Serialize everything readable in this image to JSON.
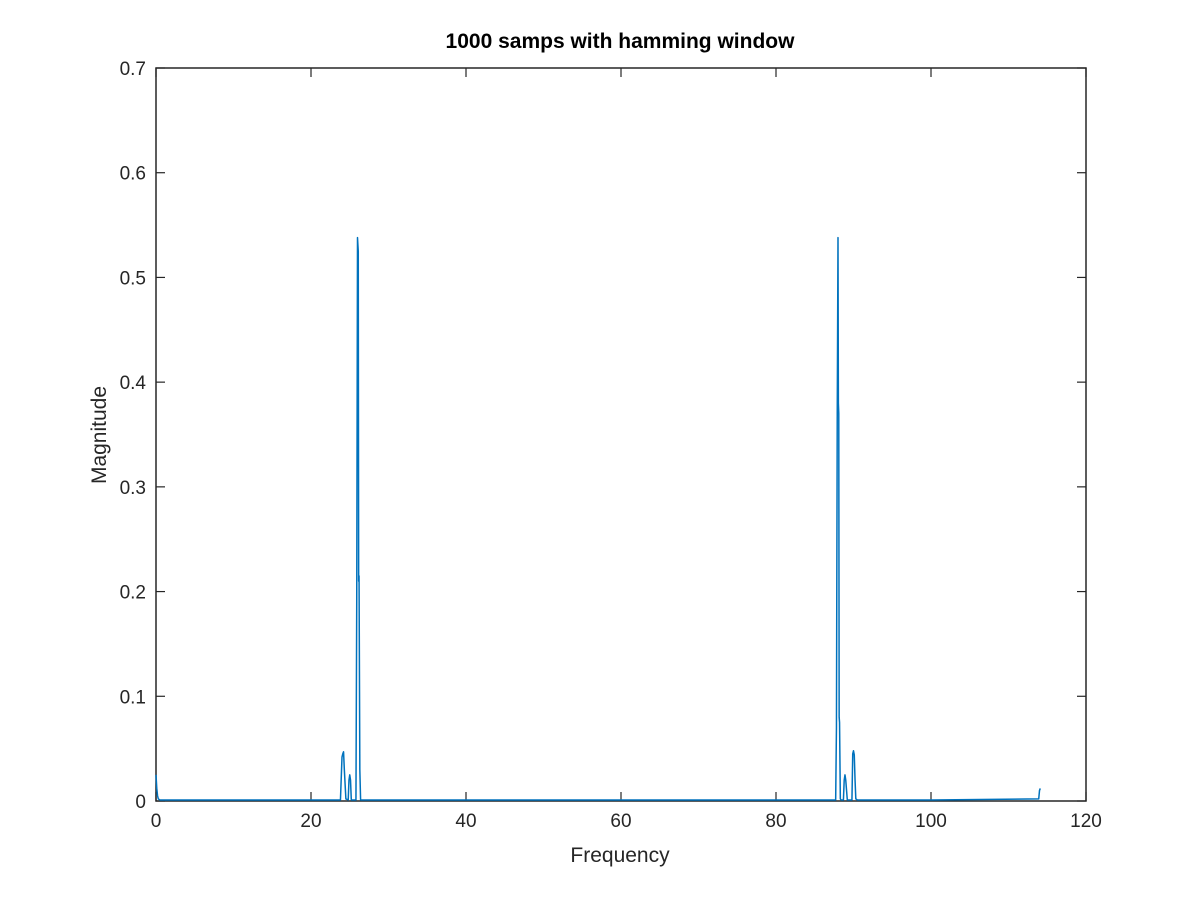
{
  "chart_data": {
    "type": "line",
    "title": "1000 samps with hamming window",
    "xlabel": "Frequency",
    "ylabel": "Magnitude",
    "xlim": [
      0,
      120
    ],
    "ylim": [
      0,
      0.7
    ],
    "xticks": [
      0,
      20,
      40,
      60,
      80,
      100,
      120
    ],
    "yticks": [
      0,
      0.1,
      0.2,
      0.3,
      0.4,
      0.5,
      0.6,
      0.7
    ],
    "xtick_labels": [
      "0",
      "20",
      "40",
      "60",
      "80",
      "100",
      "120"
    ],
    "ytick_labels": [
      "0",
      "0.1",
      "0.2",
      "0.3",
      "0.4",
      "0.5",
      "0.6",
      "0.7"
    ],
    "grid": false,
    "line_color": "#0072bd",
    "axis_color": "#262626",
    "series": [
      {
        "x": [
          0,
          0.1,
          0.2,
          0.3,
          0.5,
          20,
          23.8,
          24.0,
          24.1,
          24.2,
          24.3,
          24.5,
          24.8,
          24.9,
          25.0,
          25.1,
          25.2,
          25.5,
          25.8,
          25.9,
          26.0,
          26.1,
          26.15,
          26.2,
          26.3,
          26.4,
          27,
          50,
          87.7,
          87.8,
          87.9,
          88.0,
          88.05,
          88.1,
          88.15,
          88.2,
          88.3,
          88.4,
          88.7,
          88.8,
          88.9,
          89.0,
          89.2,
          89.8,
          89.9,
          90.0,
          90.1,
          90.2,
          90.3,
          90.5,
          100,
          113.9,
          114.0,
          114.1
        ],
        "y": [
          0.025,
          0.012,
          0.005,
          0.002,
          0.001,
          0.001,
          0.001,
          0.042,
          0.045,
          0.047,
          0.03,
          0.002,
          0.001,
          0.02,
          0.025,
          0.02,
          0.001,
          0.001,
          0.001,
          0.19,
          0.538,
          0.525,
          0.21,
          0.215,
          0.03,
          0.001,
          0.001,
          0.001,
          0.001,
          0.07,
          0.365,
          0.538,
          0.38,
          0.37,
          0.08,
          0.075,
          0.002,
          0.001,
          0.001,
          0.02,
          0.025,
          0.02,
          0.001,
          0.001,
          0.045,
          0.048,
          0.044,
          0.02,
          0.002,
          0.001,
          0.001,
          0.002,
          0.01,
          0.012
        ]
      }
    ]
  }
}
